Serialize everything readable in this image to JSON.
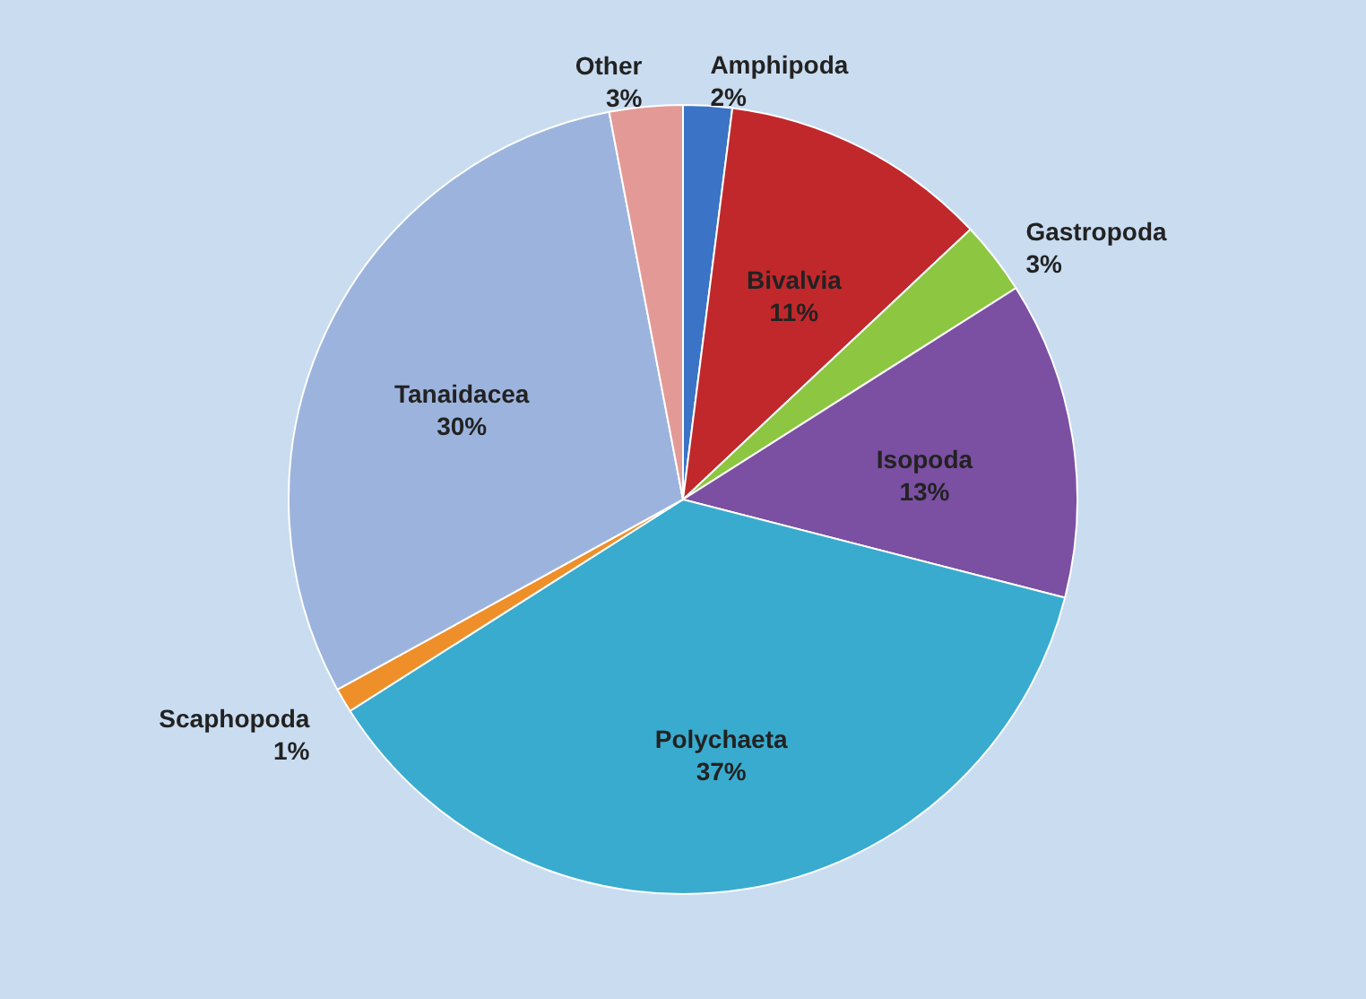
{
  "chart_data": {
    "type": "pie",
    "categories": [
      "Amphipoda",
      "Bivalvia",
      "Gastropoda",
      "Isopoda",
      "Polychaeta",
      "Scaphopoda",
      "Tanaidacea",
      "Other"
    ],
    "values": [
      2,
      11,
      3,
      13,
      37,
      1,
      30,
      3
    ],
    "value_labels": [
      "2%",
      "11%",
      "3%",
      "13%",
      "37%",
      "1%",
      "30%",
      "3%"
    ],
    "colors": [
      "#3b74c6",
      "#c0282c",
      "#8dc640",
      "#7b4fa2",
      "#39abcf",
      "#ef8f2a",
      "#9cb4dd",
      "#e39a96"
    ]
  }
}
